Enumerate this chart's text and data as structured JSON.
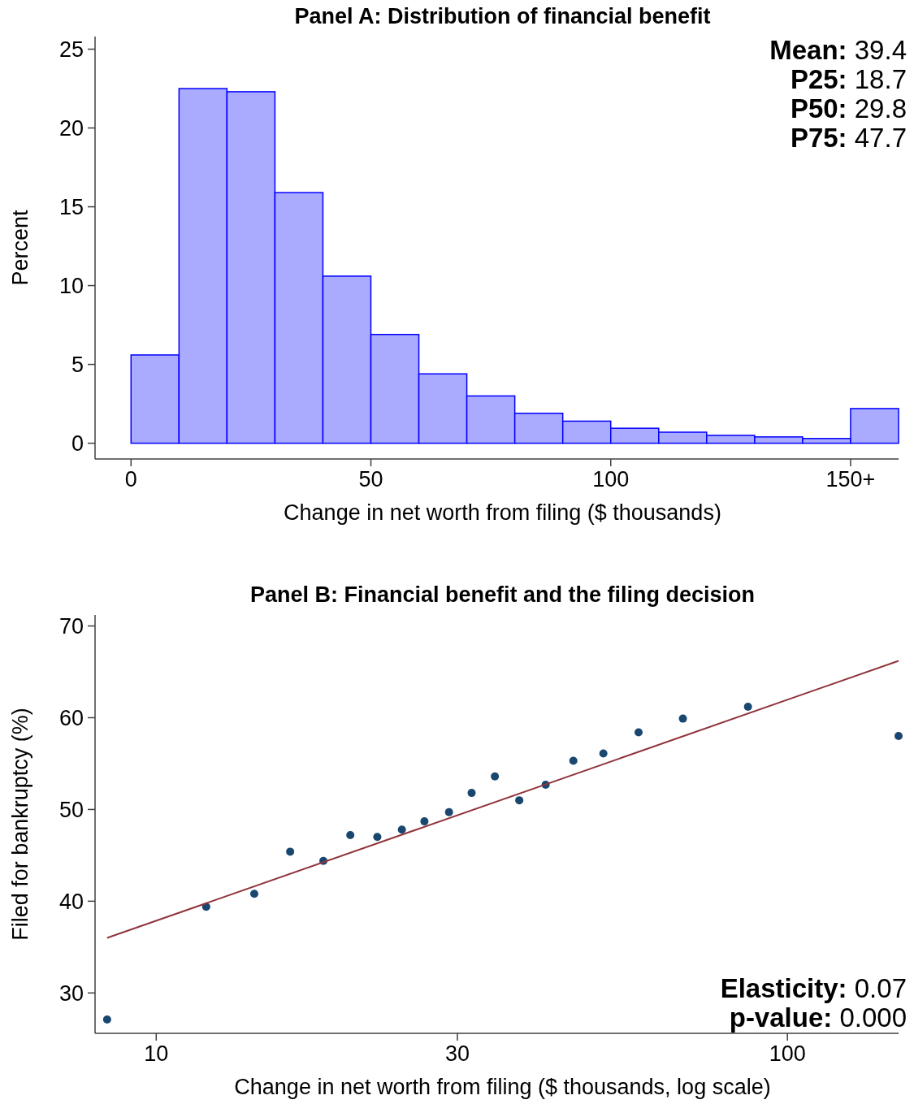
{
  "chart_data": [
    {
      "type": "histogram",
      "title": "Panel A: Distribution of financial benefit",
      "xlabel": "Change in net worth from filing ($ thousands)",
      "ylabel": "Percent",
      "bins": [
        0,
        10,
        20,
        30,
        40,
        50,
        60,
        70,
        80,
        90,
        100,
        110,
        120,
        130,
        140,
        150,
        160
      ],
      "values": [
        5.6,
        22.5,
        22.3,
        15.9,
        10.6,
        6.9,
        4.4,
        3.0,
        1.9,
        1.4,
        0.95,
        0.7,
        0.5,
        0.4,
        0.3,
        2.2
      ],
      "color": "#aaaaff",
      "xlim": [
        -7.5,
        160
      ],
      "xticks": [
        0,
        50,
        100,
        {
          "value": 150,
          "label": "150+"
        }
      ],
      "ylim": [
        -1,
        25.8
      ],
      "yticks": [
        0,
        5,
        10,
        15,
        20,
        25
      ],
      "annotations": [
        "Mean: 39.4",
        "P25: 18.7",
        "P50: 29.8",
        "P75: 47.7"
      ]
    },
    {
      "type": "scatter",
      "title": "Panel B: Financial benefit and the filing decision",
      "xlabel": "Change in net worth from filing ($ thousands, log scale)",
      "ylabel": "Filed for bankruptcy (%)",
      "log": "x",
      "xlim": [
        8,
        150
      ],
      "xticks": [
        10,
        30,
        100
      ],
      "ylim": [
        25.6,
        71.2
      ],
      "yticks": [
        30,
        40,
        50,
        60,
        70
      ],
      "series": [
        {
          "type": "scatter",
          "color": "#1a476f",
          "marker": "circle",
          "x": [
            8.36,
            12.0,
            14.3,
            16.3,
            18.4,
            20.3,
            22.4,
            24.5,
            26.6,
            29.1,
            31.6,
            34.4,
            37.6,
            41.4,
            45.8,
            51.1,
            58.1,
            68.3,
            86.6,
            150
          ],
          "values": [
            27.1,
            39.4,
            40.8,
            45.4,
            44.4,
            47.2,
            47.0,
            47.8,
            48.7,
            49.7,
            51.8,
            53.6,
            51.0,
            52.7,
            55.3,
            56.1,
            58.4,
            59.9,
            61.2,
            58.0
          ]
        },
        {
          "type": "line",
          "color": "#90353b",
          "line_style": "solid",
          "x": [
            8.36,
            150
          ],
          "values": [
            36.0,
            66.2
          ]
        }
      ],
      "annotations": [
        "Elasticity: 0.07",
        "p-value: 0.000"
      ]
    }
  ]
}
